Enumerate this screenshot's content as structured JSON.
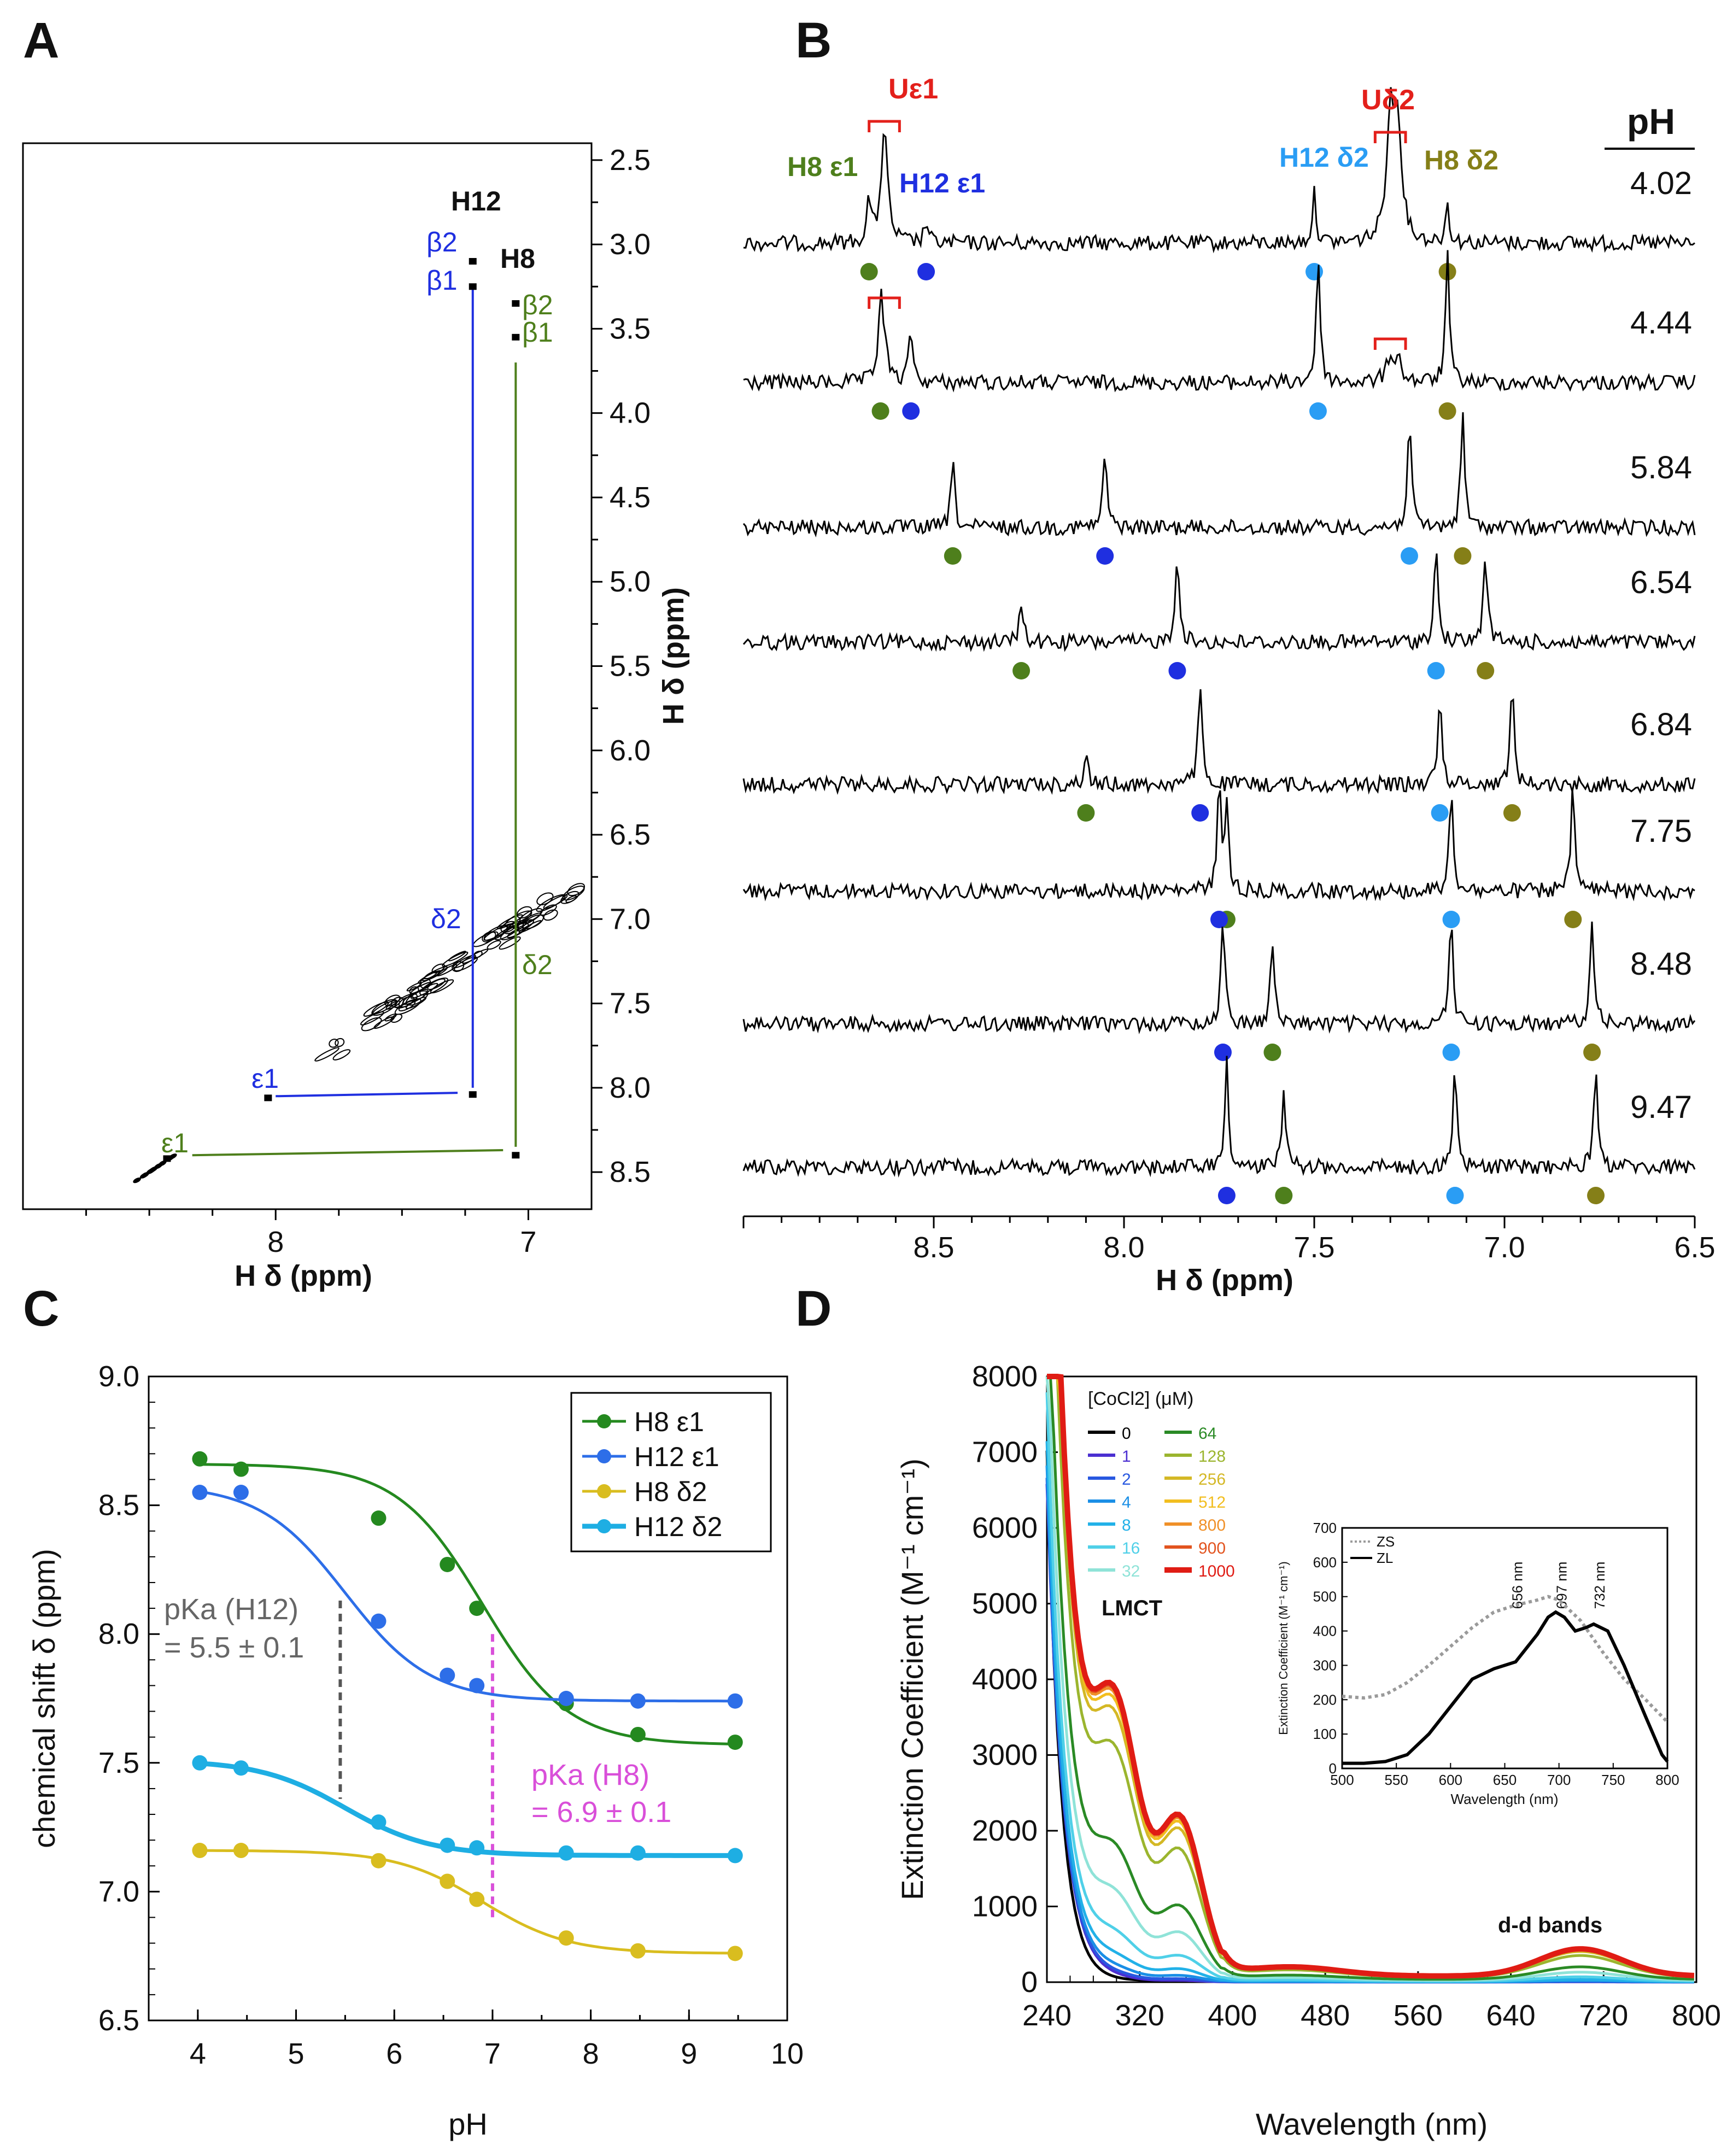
{
  "panels": {
    "A": "A",
    "B": "B",
    "C": "C",
    "D": "D"
  },
  "colors": {
    "h8": "#4e7f1c",
    "h12": "#1f2fe0",
    "h12d2": "#2a9df4",
    "h8d2": "#857f18",
    "u": "#e3201b",
    "pka_h12": "#555555",
    "pka_h8": "#d94fd9"
  },
  "chart_data": [
    {
      "id": "A",
      "type": "heatmap",
      "title": "",
      "xlabel": "H δ (ppm)",
      "ylabel": "H δ (ppm)",
      "xlim": [
        9.0,
        6.75
      ],
      "ylim": [
        2.4,
        8.72
      ],
      "xticks": [
        "8",
        "7"
      ],
      "yticks": [
        "2.5",
        "3.0",
        "3.5",
        "4.0",
        "4.5",
        "5.0",
        "5.5",
        "6.0",
        "6.5",
        "7.0",
        "7.5",
        "8.0",
        "8.5"
      ],
      "labels": {
        "h12": "H12",
        "h8": "H8",
        "h12_b2": "β2",
        "h12_b1": "β1",
        "h8_b2": "β2",
        "h8_b1": "β1",
        "h12_d2": "δ2",
        "h8_d2": "δ2",
        "h12_e1": "ε1",
        "h8_e1": "ε1"
      },
      "assignments": [
        {
          "residue": "H12",
          "d2": 7.22,
          "e1": 8.05,
          "b2": 3.1,
          "b1": 3.25
        },
        {
          "residue": "H8",
          "d2": 7.05,
          "e1": 8.4,
          "b2": 3.35,
          "b1": 3.55
        }
      ]
    },
    {
      "id": "B",
      "type": "line",
      "title": "pH",
      "xlabel": "H δ (ppm)",
      "xlim": [
        9.0,
        6.5
      ],
      "xticks": [
        "8.5",
        "8.0",
        "7.5",
        "7.0",
        "6.5"
      ],
      "peak_labels": {
        "h8e1": "H8 ε1",
        "h12e1": "H12 ε1",
        "h12d2": "H12 δ2",
        "h8d2": "H8 δ2",
        "ue1": "Uε1",
        "ud2": "Uδ2"
      },
      "spectra": [
        {
          "pH": "4.02",
          "h8e1": 8.67,
          "h12e1": 8.52,
          "h12d2": 7.5,
          "h8d2": 7.15,
          "u_e1": 8.63,
          "u_d2": 7.3
        },
        {
          "pH": "4.44",
          "h8e1": 8.64,
          "h12e1": 8.56,
          "h12d2": 7.49,
          "h8d2": 7.15,
          "u_e1": 8.63,
          "u_d2": 7.3
        },
        {
          "pH": "5.84",
          "h8e1": 8.45,
          "h12e1": 8.05,
          "h12d2": 7.25,
          "h8d2": 7.11
        },
        {
          "pH": "6.54",
          "h8e1": 8.27,
          "h12e1": 7.86,
          "h12d2": 7.18,
          "h8d2": 7.05
        },
        {
          "pH": "6.84",
          "h8e1": 8.1,
          "h12e1": 7.8,
          "h12d2": 7.17,
          "h8d2": 6.98
        },
        {
          "pH": "7.75",
          "h8e1": 7.73,
          "h12e1": 7.75,
          "h12d2": 7.14,
          "h8d2": 6.82
        },
        {
          "pH": "8.48",
          "h8e1": 7.61,
          "h12e1": 7.74,
          "h12d2": 7.14,
          "h8d2": 6.77
        },
        {
          "pH": "9.47",
          "h8e1": 7.58,
          "h12e1": 7.73,
          "h12d2": 7.13,
          "h8d2": 6.76
        }
      ]
    },
    {
      "id": "C",
      "type": "scatter",
      "title": "",
      "xlabel": "pH",
      "ylabel": "chemical shift δ  (ppm)",
      "xlim": [
        3.5,
        10
      ],
      "ylim": [
        6.5,
        9.0
      ],
      "xticks": [
        "4",
        "5",
        "6",
        "7",
        "8",
        "9",
        "10"
      ],
      "yticks": [
        "6.5",
        "7.0",
        "7.5",
        "8.0",
        "8.5",
        "9.0"
      ],
      "x": [
        4.02,
        4.44,
        5.84,
        6.54,
        6.84,
        7.75,
        8.48,
        9.47
      ],
      "series": [
        {
          "name": "H8 ε1",
          "color": "#24891f",
          "values": [
            8.68,
            8.64,
            8.45,
            8.27,
            8.1,
            7.73,
            7.61,
            7.58
          ],
          "fit": {
            "acid": 8.66,
            "base": 7.57,
            "pka": 6.9
          },
          "width": 5
        },
        {
          "name": "H12 ε1",
          "color": "#2d6ee8",
          "values": [
            8.55,
            8.55,
            8.05,
            7.84,
            7.8,
            7.75,
            7.74,
            7.74
          ],
          "fit": {
            "acid": 8.58,
            "base": 7.74,
            "pka": 5.5
          },
          "width": 5
        },
        {
          "name": "H8 δ2",
          "color": "#d9bd1f",
          "values": [
            7.16,
            7.16,
            7.12,
            7.04,
            6.97,
            6.82,
            6.77,
            6.76
          ],
          "fit": {
            "acid": 7.16,
            "base": 6.76,
            "pka": 6.9
          },
          "width": 5
        },
        {
          "name": "H12 δ2",
          "color": "#1eaee3",
          "values": [
            7.5,
            7.48,
            7.27,
            7.18,
            7.17,
            7.15,
            7.15,
            7.14
          ],
          "fit": {
            "acid": 7.51,
            "base": 7.14,
            "pka": 5.5
          },
          "width": 9
        }
      ],
      "annotations": {
        "pka_h12_l1": "pKa (H12)",
        "pka_h12_l2": "= 5.5 ± 0.1",
        "pka_h8_l1": "pKa (H8)",
        "pka_h8_l2": "= 6.9 ± 0.1"
      }
    },
    {
      "id": "D",
      "type": "line",
      "title": "",
      "xlabel": "Wavelength (nm)",
      "ylabel": "Extinction Coefficient (M⁻¹ cm⁻¹)",
      "xlim": [
        240,
        800
      ],
      "ylim": [
        0,
        8000
      ],
      "xticks": [
        "240",
        "320",
        "400",
        "480",
        "560",
        "640",
        "720",
        "800"
      ],
      "yticks": [
        "0",
        "1000",
        "2000",
        "3000",
        "4000",
        "5000",
        "6000",
        "7000",
        "8000"
      ],
      "legend_title": "[CoCl2] (μM)",
      "annotations": {
        "lmct": "LMCT",
        "dd": "d-d bands"
      },
      "series": [
        {
          "name": "0",
          "color": "#000000",
          "scale": 0.0
        },
        {
          "name": "1",
          "color": "#4b2fd1",
          "scale": 0.01
        },
        {
          "name": "2",
          "color": "#2858e0",
          "scale": 0.02
        },
        {
          "name": "4",
          "color": "#1a8fe6",
          "scale": 0.04
        },
        {
          "name": "8",
          "color": "#22b1e8",
          "scale": 0.08
        },
        {
          "name": "16",
          "color": "#4fd0e8",
          "scale": 0.16
        },
        {
          "name": "32",
          "color": "#8fe3d8",
          "scale": 0.3
        },
        {
          "name": "64",
          "color": "#2a8a25",
          "scale": 0.46
        },
        {
          "name": "128",
          "color": "#9bb52e",
          "scale": 0.8
        },
        {
          "name": "256",
          "color": "#d4b825",
          "scale": 0.92
        },
        {
          "name": "512",
          "color": "#f2be1f",
          "scale": 0.96
        },
        {
          "name": "800",
          "color": "#f09028",
          "scale": 0.98
        },
        {
          "name": "900",
          "color": "#e2531e",
          "scale": 0.99
        },
        {
          "name": "1000",
          "color": "#e01c14",
          "scale": 1.0
        }
      ],
      "inset": {
        "type": "line",
        "xlabel": "Wavelength (nm)",
        "ylabel": "Extinction Coefficient (M⁻¹ cm⁻¹)",
        "xlim": [
          500,
          800
        ],
        "ylim": [
          0,
          700
        ],
        "xticks": [
          "500",
          "550",
          "600",
          "650",
          "700",
          "750",
          "800"
        ],
        "yticks": [
          "0",
          "100",
          "200",
          "300",
          "400",
          "500",
          "600",
          "700"
        ],
        "peaks": [
          "656 nm",
          "697 nm",
          "732 nm"
        ],
        "series": [
          {
            "name": "ZS",
            "color": "#9a9a9a",
            "style": "dotted",
            "x": [
              500,
              520,
              540,
              560,
              580,
              600,
              620,
              640,
              660,
              680,
              690,
              700,
              710,
              720,
              740,
              760,
              780,
              800
            ],
            "values": [
              210,
              205,
              215,
              250,
              300,
              355,
              410,
              455,
              475,
              490,
              500,
              490,
              460,
              430,
              340,
              260,
              200,
              135
            ]
          },
          {
            "name": "ZL",
            "color": "#000000",
            "style": "solid",
            "x": [
              500,
              520,
              540,
              560,
              580,
              600,
              620,
              640,
              660,
              680,
              690,
              697,
              705,
              715,
              725,
              732,
              745,
              760,
              780,
              795,
              800
            ],
            "values": [
              15,
              15,
              20,
              40,
              100,
              180,
              260,
              290,
              310,
              390,
              440,
              455,
              440,
              400,
              410,
              420,
              400,
              300,
              150,
              40,
              20
            ]
          }
        ]
      }
    }
  ]
}
